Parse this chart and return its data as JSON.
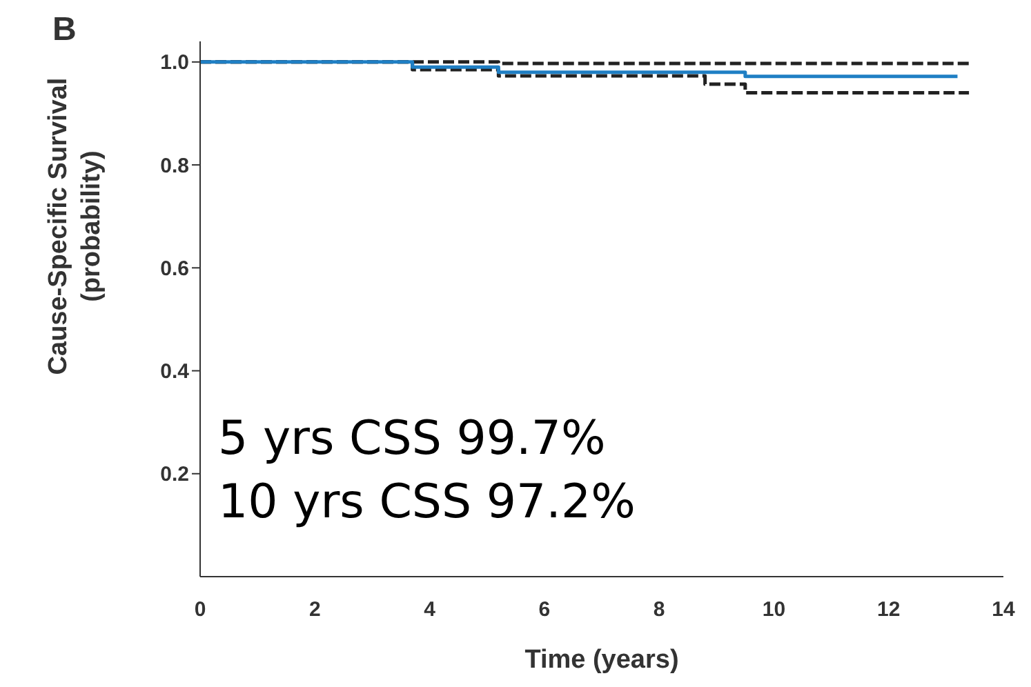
{
  "chart_data": {
    "type": "step",
    "title": "B",
    "xlabel": "Time (years)",
    "ylabel": "Cause-Specific Survival\n(probability)",
    "xlim": [
      0,
      14
    ],
    "xticks": [
      0,
      2,
      4,
      6,
      8,
      10,
      12,
      14
    ],
    "ylim": [
      0,
      1.04
    ],
    "yticks": [
      {
        "value": 0.2,
        "label": "0.2"
      },
      {
        "value": 0.4,
        "label": "0.4"
      },
      {
        "value": 0.6,
        "label": "0.6"
      },
      {
        "value": 0.8,
        "label": "0.8"
      },
      {
        "value": 1,
        "label": "1.0"
      }
    ],
    "annotations": [
      "5 yrs CSS 99.7%",
      "10 yrs CSS 97.2%"
    ],
    "series": [
      {
        "color": "#222222",
        "line_style": "dashed",
        "x": [
          0,
          5.2,
          13.4
        ],
        "values": [
          1.0,
          0.997,
          0.997
        ]
      },
      {
        "color": "#222222",
        "line_style": "dashed",
        "x": [
          0,
          3.7,
          5.2,
          8.8,
          9.5,
          13.4
        ],
        "values": [
          1.0,
          0.985,
          0.973,
          0.957,
          0.94,
          0.94
        ]
      },
      {
        "color": "#1f7fc4",
        "line_style": "solid",
        "x": [
          0,
          3.7,
          5.2,
          9.5,
          13.2
        ],
        "values": [
          1.0,
          0.99,
          0.98,
          0.972,
          0.972
        ]
      }
    ]
  }
}
